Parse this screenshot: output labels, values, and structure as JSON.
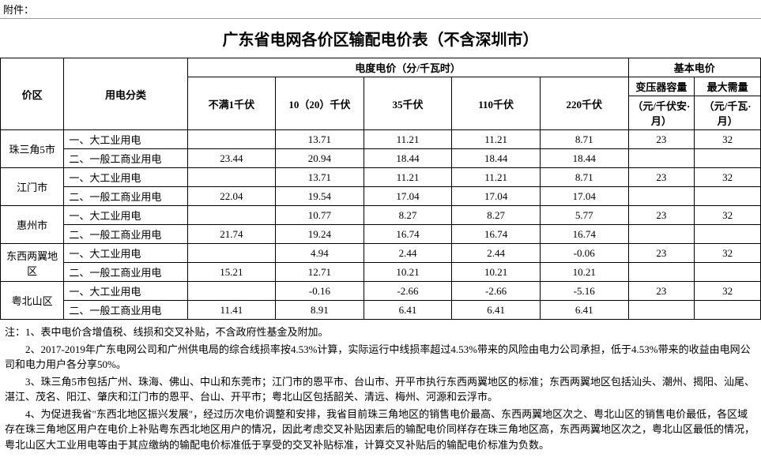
{
  "attachment_label": "附件：",
  "title": "广东省电网各价区输配电价表（不含深圳市）",
  "header": {
    "region": "价区",
    "category": "用电分类",
    "energy_price_group": "电度电价（分/千瓦时）",
    "basic_price_group": "基本电价",
    "voltage": [
      "不满1千伏",
      "10（20）千伏",
      "35千伏",
      "110千伏",
      "220千伏"
    ],
    "transformer_capacity": "变压器容量",
    "transformer_unit": "（元/千伏安·月）",
    "max_demand": "最大需量",
    "max_demand_unit": "（元/千瓦·月）"
  },
  "categories": {
    "large_industrial": "一、大工业用电",
    "general_commercial": "二、一般工商业用电"
  },
  "regions": [
    {
      "name": "珠三角5市",
      "rows": [
        {
          "cat_key": "large_industrial",
          "values": [
            "",
            "13.71",
            "11.21",
            "11.21",
            "8.71"
          ],
          "basic": [
            "23",
            "32"
          ]
        },
        {
          "cat_key": "general_commercial",
          "values": [
            "23.44",
            "20.94",
            "18.44",
            "18.44",
            "18.44"
          ],
          "basic": [
            "",
            ""
          ]
        }
      ]
    },
    {
      "name": "江门市",
      "rows": [
        {
          "cat_key": "large_industrial",
          "values": [
            "",
            "13.71",
            "11.21",
            "11.21",
            "8.71"
          ],
          "basic": [
            "23",
            "32"
          ]
        },
        {
          "cat_key": "general_commercial",
          "values": [
            "22.04",
            "19.54",
            "17.04",
            "17.04",
            "17.04"
          ],
          "basic": [
            "",
            ""
          ]
        }
      ]
    },
    {
      "name": "惠州市",
      "rows": [
        {
          "cat_key": "large_industrial",
          "values": [
            "",
            "10.77",
            "8.27",
            "8.27",
            "5.77"
          ],
          "basic": [
            "23",
            "32"
          ]
        },
        {
          "cat_key": "general_commercial",
          "values": [
            "21.74",
            "19.24",
            "16.74",
            "16.74",
            "16.74"
          ],
          "basic": [
            "",
            ""
          ]
        }
      ]
    },
    {
      "name": "东西两翼地区",
      "rows": [
        {
          "cat_key": "large_industrial",
          "values": [
            "",
            "4.94",
            "2.44",
            "2.44",
            "-0.06"
          ],
          "basic": [
            "23",
            "32"
          ]
        },
        {
          "cat_key": "general_commercial",
          "values": [
            "15.21",
            "12.71",
            "10.21",
            "10.21",
            "10.21"
          ],
          "basic": [
            "",
            ""
          ]
        }
      ]
    },
    {
      "name": "粤北山区",
      "rows": [
        {
          "cat_key": "large_industrial",
          "values": [
            "",
            "-0.16",
            "-2.66",
            "-2.66",
            "-5.16"
          ],
          "basic": [
            "23",
            "32"
          ]
        },
        {
          "cat_key": "general_commercial",
          "values": [
            "11.41",
            "8.91",
            "6.41",
            "6.41",
            "6.41"
          ],
          "basic": [
            "",
            ""
          ]
        }
      ]
    }
  ],
  "notes": [
    "注：1、表中电价含增值税、线损和交叉补贴，不含政府性基金及附加。",
    "2、2017-2019年广东电网公司和广州供电局的综合线损率按4.53%计算，实际运行中线损率超过4.53%带来的风险由电力公司承担，低于4.53%带来的收益由电网公司和电力用户各分享50%。",
    "3、珠三角5市包括广州、珠海、佛山、中山和东莞市；江门市的恩平市、台山市、开平市执行东西两翼地区的标准；东西两翼地区包括汕头、潮州、揭阳、汕尾、湛江、茂名、阳江、肇庆和江门市的恩平、台山、开平市；粤北山区包括韶关、清远、梅州、河源和云浮市。",
    "4、为促进我省\"东西北地区振兴发展\"，经过历次电价调整和安排，我省目前珠三角地区的销售电价最高、东西两翼地区次之、粤北山区的销售电价最低，各区域存在珠三角地区用户在电价上补贴粤东西北地区用户的情况，因此考虑交叉补贴因素后的输配电价同样存在珠三角地区高，东西两翼地区次之，粤北山区最低的情况，粤北山区大工业用电等由于其应缴纳的输配电价标准低于享受的交叉补贴标准，计算交叉补贴后的输配电价标准为负数。"
  ]
}
